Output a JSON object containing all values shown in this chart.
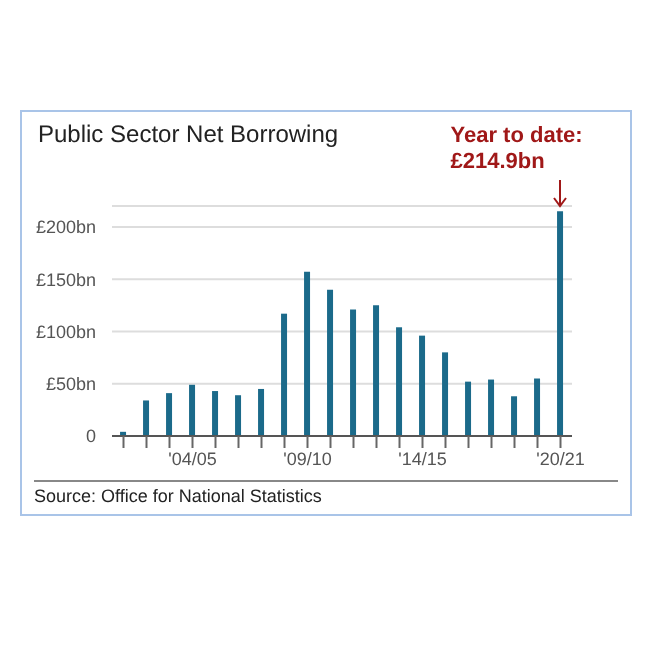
{
  "chart_data": {
    "type": "bar",
    "title": "Public Sector Net Borrowing",
    "categories": [
      null,
      null,
      null,
      "'04/05",
      null,
      null,
      null,
      null,
      "'09/10",
      null,
      null,
      null,
      null,
      "'14/15",
      null,
      null,
      null,
      null,
      null,
      "'20/21"
    ],
    "values": [
      4,
      34,
      41,
      49,
      43,
      39,
      45,
      117,
      157,
      140,
      121,
      125,
      104,
      96,
      80,
      52,
      54,
      38,
      55,
      214.9
    ],
    "color": "#1b6a8a",
    "ylim": [
      0,
      220
    ],
    "yticks": [
      {
        "value": 0,
        "label": "0"
      },
      {
        "value": 50,
        "label": "£50bn"
      },
      {
        "value": 100,
        "label": "£100bn"
      },
      {
        "value": 150,
        "label": "£150bn"
      },
      {
        "value": 200,
        "label": "£200bn"
      }
    ],
    "grid": "y",
    "legend": false,
    "annotations": [
      {
        "text": "Year to date: £214.9bn",
        "x": "'20/21",
        "y": 214.9
      },
      "Source: Office for National Statistics"
    ]
  }
}
